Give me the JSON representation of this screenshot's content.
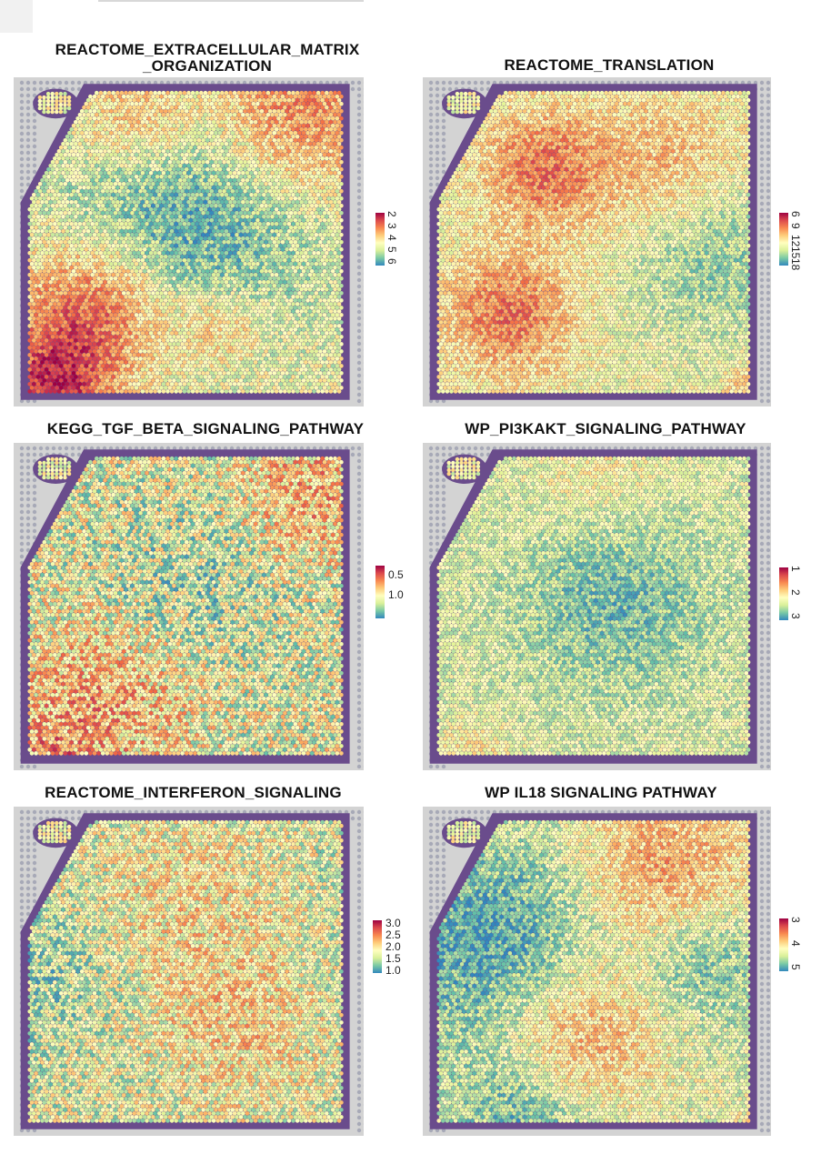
{
  "colors": {
    "spectral_low": "#d7191c",
    "spectral_mid": "#ffffbf",
    "spectral_high": "#2b83ba",
    "tissue_border": "#6a4c8c",
    "background_spot": "#9c9fb0",
    "slide": "#d3d3d3"
  },
  "chart_data": [
    {
      "type": "heatmap",
      "title": "REACTOME_EXTRACELLULAR_MATRIX\n_ORGANIZATION",
      "colormap": "Spectral (reversed: low = red, high = blue)",
      "legend": {
        "ticks": [
          "2",
          "3",
          "4",
          "5",
          "6"
        ],
        "rotated": true,
        "range": [
          2,
          6
        ]
      },
      "pattern": "high (blue) band across the middle; low (red/orange) in upper-right and lower-left regions"
    },
    {
      "type": "heatmap",
      "title": "REACTOME_TRANSLATION",
      "colormap": "Spectral (reversed: low = red, high = blue)",
      "legend": {
        "ticks": [
          "6",
          "9",
          "12",
          "15",
          "18"
        ],
        "rotated": true,
        "range": [
          6,
          18
        ]
      },
      "pattern": "mostly mid (yellow-green); red patches in upper center and lower left"
    },
    {
      "type": "heatmap",
      "title": "KEGG_TGF_BETA_SIGNALING_PATHWAY",
      "colormap": "Spectral (reversed: low = red, high = blue)",
      "legend": {
        "ticks": [
          "0.5",
          "1.0"
        ],
        "rotated": false,
        "range": [
          0.3,
          1.2
        ]
      },
      "pattern": "speckled; red clusters in lower left and upper right"
    },
    {
      "type": "heatmap",
      "title": "WP_PI3KAKT_SIGNALING_PATHWAY",
      "colormap": "Spectral (reversed: low = red, high = blue)",
      "legend": {
        "ticks": [
          "1",
          "2",
          "3"
        ],
        "rotated": true,
        "range": [
          1,
          3
        ]
      },
      "pattern": "mostly green-yellow; bluer region at center"
    },
    {
      "type": "heatmap",
      "title": "REACTOME_INTERFERON_SIGNALING",
      "colormap": "Spectral (reversed: low = red, high = blue)",
      "legend": {
        "ticks": [
          "3.0",
          "2.5",
          "2.0",
          "1.5",
          "1.0"
        ],
        "rotated": false,
        "range": [
          1.0,
          3.0
        ]
      },
      "pattern": "speckled green/yellow with scattered orange spots"
    },
    {
      "type": "heatmap",
      "title": "WP  IL18  SIGNALING  PATHWAY",
      "colormap": "Spectral (reversed: low = red, high = blue)",
      "legend": {
        "ticks": [
          "3",
          "4",
          "5"
        ],
        "rotated": true,
        "range": [
          3,
          5
        ]
      },
      "pattern": "blue band across middle-left; orange in upper right and lower middle"
    }
  ]
}
